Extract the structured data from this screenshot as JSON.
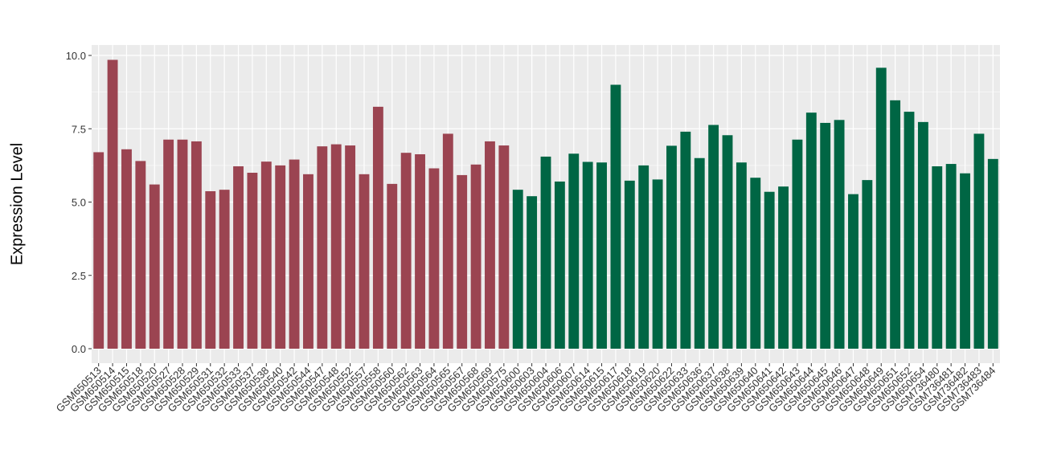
{
  "chart_data": {
    "type": "bar",
    "title": "",
    "xlabel": "",
    "ylabel": "Expression Level",
    "ylim": [
      0,
      10
    ],
    "yticks": [
      "0.0",
      "2.5",
      "5.0",
      "7.5",
      "10.0"
    ],
    "grid": true,
    "legend": "none",
    "colors": {
      "group1": "#9b4451",
      "group2": "#006644",
      "panel": "#ebebeb",
      "grid": "#ffffff"
    },
    "categories": [
      "GSM650513",
      "GSM650514",
      "GSM650515",
      "GSM650518",
      "GSM650520",
      "GSM650527",
      "GSM650528",
      "GSM650529",
      "GSM650531",
      "GSM650532",
      "GSM650533",
      "GSM650537",
      "GSM650538",
      "GSM650540",
      "GSM650542",
      "GSM650544",
      "GSM650547",
      "GSM650548",
      "GSM650552",
      "GSM650557",
      "GSM650558",
      "GSM650560",
      "GSM650562",
      "GSM650563",
      "GSM650564",
      "GSM650565",
      "GSM650567",
      "GSM650568",
      "GSM650569",
      "GSM650575",
      "GSM650600",
      "GSM650603",
      "GSM650604",
      "GSM650606",
      "GSM650607",
      "GSM650614",
      "GSM650615",
      "GSM650617",
      "GSM650618",
      "GSM650619",
      "GSM650620",
      "GSM650622",
      "GSM650633",
      "GSM650636",
      "GSM650637",
      "GSM650638",
      "GSM650639",
      "GSM650640",
      "GSM650641",
      "GSM650642",
      "GSM650643",
      "GSM650644",
      "GSM650645",
      "GSM650646",
      "GSM650647",
      "GSM650648",
      "GSM650649",
      "GSM650651",
      "GSM650652",
      "GSM650654",
      "GSM736480",
      "GSM736481",
      "GSM736482",
      "GSM736483",
      "GSM736484"
    ],
    "values": [
      6.7,
      9.85,
      6.8,
      6.4,
      5.6,
      7.13,
      7.13,
      7.07,
      5.37,
      5.42,
      6.22,
      6.0,
      6.38,
      6.25,
      6.45,
      5.95,
      6.9,
      6.97,
      6.93,
      5.95,
      8.25,
      5.62,
      6.68,
      6.63,
      6.15,
      7.33,
      5.92,
      6.28,
      7.07,
      6.93,
      5.42,
      5.2,
      6.55,
      5.7,
      6.65,
      6.37,
      6.35,
      9.0,
      5.73,
      6.25,
      5.77,
      6.92,
      7.4,
      6.5,
      7.63,
      7.28,
      6.35,
      5.83,
      5.35,
      5.53,
      7.13,
      8.05,
      7.7,
      7.8,
      5.27,
      5.75,
      9.58,
      8.47,
      8.08,
      7.73,
      6.22,
      6.3,
      5.98,
      7.33,
      6.47
    ],
    "groups": [
      1,
      1,
      1,
      1,
      1,
      1,
      1,
      1,
      1,
      1,
      1,
      1,
      1,
      1,
      1,
      1,
      1,
      1,
      1,
      1,
      1,
      1,
      1,
      1,
      1,
      1,
      1,
      1,
      1,
      1,
      2,
      2,
      2,
      2,
      2,
      2,
      2,
      2,
      2,
      2,
      2,
      2,
      2,
      2,
      2,
      2,
      2,
      2,
      2,
      2,
      2,
      2,
      2,
      2,
      2,
      2,
      2,
      2,
      2,
      2,
      2,
      2,
      2,
      2,
      2
    ]
  }
}
